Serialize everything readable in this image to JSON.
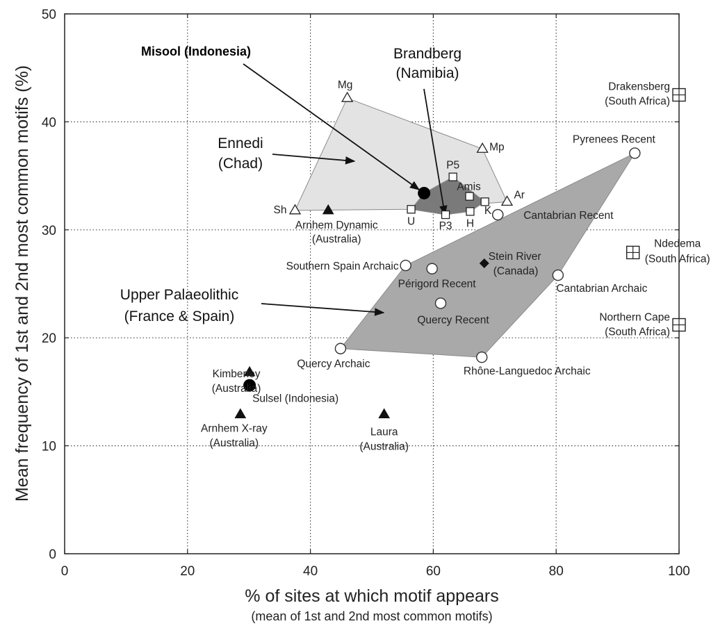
{
  "chart_data": {
    "type": "scatter",
    "xlabel": "% of sites at which motif appears",
    "xlabel_sub": "(mean of 1st and 2nd most common motifs)",
    "ylabel": "Mean frequency of 1st and 2nd most common motifs (%)",
    "xlim": [
      0,
      100
    ],
    "ylim": [
      0,
      50
    ],
    "xticks": [
      0,
      20,
      40,
      60,
      80,
      100
    ],
    "yticks": [
      0,
      10,
      20,
      30,
      40,
      50
    ],
    "grid": "dotted",
    "regions": [
      {
        "name": "Ennedi",
        "fill": "#e3e3e3",
        "points": [
          [
            37.5,
            31.8
          ],
          [
            46,
            42.2
          ],
          [
            68,
            37.5
          ],
          [
            72,
            32.6
          ],
          [
            56.4,
            31.9
          ]
        ]
      },
      {
        "name": "Upper Palaeolithic",
        "fill": "#a9a9a9",
        "points": [
          [
            92.8,
            37.1
          ],
          [
            80.3,
            25.8
          ],
          [
            67.9,
            18.2
          ],
          [
            44.9,
            19.0
          ],
          [
            55.5,
            26.7
          ]
        ]
      },
      {
        "name": "Brandberg",
        "fill": "#7a7a7a",
        "points": [
          [
            58.5,
            33.4
          ],
          [
            63.2,
            34.9
          ],
          [
            68.4,
            32.6
          ],
          [
            66,
            31.7
          ],
          [
            62,
            31.4
          ],
          [
            56.4,
            31.9
          ]
        ]
      }
    ],
    "points": [
      {
        "label": "Mg",
        "x": 46,
        "y": 42.2,
        "marker": "open-triangle"
      },
      {
        "label": "Mp",
        "x": 68,
        "y": 37.5,
        "marker": "open-triangle"
      },
      {
        "label": "Sh",
        "x": 37.5,
        "y": 31.8,
        "marker": "open-triangle"
      },
      {
        "label": "Ar",
        "x": 72,
        "y": 32.6,
        "marker": "open-triangle"
      },
      {
        "label": "P5",
        "x": 63.2,
        "y": 34.9,
        "marker": "open-square"
      },
      {
        "label": "Amis",
        "x": 65.9,
        "y": 33.1,
        "marker": "open-square"
      },
      {
        "label": "",
        "x": 68.4,
        "y": 32.6,
        "marker": "open-square"
      },
      {
        "label": "U",
        "x": 56.4,
        "y": 31.9,
        "marker": "open-square"
      },
      {
        "label": "P3",
        "x": 62,
        "y": 31.4,
        "marker": "open-square"
      },
      {
        "label": "H",
        "x": 66,
        "y": 31.7,
        "marker": "open-square"
      },
      {
        "label": "K",
        "x": 70.5,
        "y": 31.4,
        "marker": "open-circle"
      },
      {
        "label": "Misool (Indonesia)",
        "x": 58.5,
        "y": 33.4,
        "marker": "filled-circle"
      },
      {
        "label": "Arnhem Dynamic (Australia)",
        "x": 42.9,
        "y": 31.8,
        "marker": "filled-triangle"
      },
      {
        "label": "Pyrenees Recent",
        "x": 92.8,
        "y": 37.1,
        "marker": "open-circle"
      },
      {
        "label": "Cantabrian Recent",
        "x": 70.5,
        "y": 31.4,
        "marker": "open-circle"
      },
      {
        "label": "Southern Spain Archaic",
        "x": 55.5,
        "y": 26.7,
        "marker": "open-circle"
      },
      {
        "label": "Périgord Recent",
        "x": 59.8,
        "y": 26.4,
        "marker": "open-circle"
      },
      {
        "label": "Stein River (Canada)",
        "x": 68.3,
        "y": 26.9,
        "marker": "filled-diamond"
      },
      {
        "label": "Cantabrian Archaic",
        "x": 80.3,
        "y": 25.8,
        "marker": "open-circle"
      },
      {
        "label": "Quercy Recent",
        "x": 61.2,
        "y": 23.2,
        "marker": "open-circle"
      },
      {
        "label": "Quercy Archaic",
        "x": 44.9,
        "y": 19.0,
        "marker": "open-circle"
      },
      {
        "label": "Rhône-Languedoc Archaic",
        "x": 67.9,
        "y": 18.2,
        "marker": "open-circle"
      },
      {
        "label": "Drakensberg (South Africa)",
        "x": 100,
        "y": 42.5,
        "marker": "crossed-square"
      },
      {
        "label": "Ndedema (South Africa)",
        "x": 92.5,
        "y": 27.9,
        "marker": "crossed-square"
      },
      {
        "label": "Northern Cape (South Africa)",
        "x": 100,
        "y": 21.2,
        "marker": "crossed-square"
      },
      {
        "label": "Kimberley (Australia)",
        "x": 30.1,
        "y": 16.8,
        "marker": "filled-triangle"
      },
      {
        "label": "Sulsel (Indonesia)",
        "x": 30.1,
        "y": 15.6,
        "marker": "filled-circle"
      },
      {
        "label": "Arnhem X-ray (Australia)",
        "x": 28.6,
        "y": 12.9,
        "marker": "filled-triangle"
      },
      {
        "label": "Laura (Australia)",
        "x": 52,
        "y": 12.9,
        "marker": "filled-triangle"
      }
    ],
    "annotations": [
      {
        "text": "Misool (Indonesia)",
        "lines": [
          "Misool (Indonesia)"
        ],
        "bold": true
      },
      {
        "text": "Brandberg (Namibia)",
        "lines": [
          "Brandberg",
          "(Namibia)"
        ]
      },
      {
        "text": "Ennedi (Chad)",
        "lines": [
          "Ennedi",
          "(Chad)"
        ]
      },
      {
        "text": "Upper Palaeolithic (France & Spain)",
        "lines": [
          "Upper Palaeolithic",
          "(France & Spain)"
        ]
      }
    ]
  }
}
